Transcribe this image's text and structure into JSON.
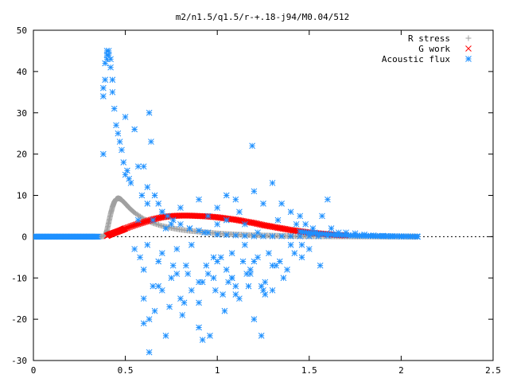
{
  "chart_data": {
    "type": "scatter",
    "title": "m2/n1.5/q1.5/r-+.18-j94/M0.04/512",
    "xlabel": "",
    "ylabel": "",
    "xlim": [
      0,
      2.5
    ],
    "ylim": [
      -30,
      50
    ],
    "xticks": [
      "0",
      "0.5",
      "1",
      "1.5",
      "2",
      "2.5"
    ],
    "yticks": [
      "50",
      "40",
      "30",
      "20",
      "10",
      "0",
      "-10",
      "-20",
      "-30"
    ],
    "grid": false,
    "legend_position": "top-right",
    "series": [
      {
        "name": "R stress",
        "marker": "plus",
        "color": "#a0a0a0",
        "x": [
          0.0,
          0.05,
          0.1,
          0.15,
          0.2,
          0.25,
          0.3,
          0.35,
          0.39,
          0.4,
          0.41,
          0.42,
          0.43,
          0.44,
          0.45,
          0.46,
          0.47,
          0.48,
          0.5,
          0.52,
          0.55,
          0.6,
          0.65,
          0.7,
          0.75,
          0.8,
          0.85,
          0.9,
          0.95,
          1.0,
          1.05,
          1.1,
          1.15,
          1.2,
          1.25,
          1.3,
          1.35,
          1.4,
          1.45,
          1.5,
          1.55,
          1.6,
          1.65,
          1.7,
          1.75,
          1.8,
          1.85,
          1.9,
          1.95,
          2.0,
          2.05,
          2.09
        ],
        "y": [
          0,
          0,
          0,
          0,
          0,
          0,
          0,
          0,
          0.1,
          1.5,
          3.5,
          5.5,
          7.2,
          8.4,
          9.1,
          9.3,
          9.2,
          8.9,
          8.0,
          7.0,
          5.8,
          4.3,
          3.3,
          2.6,
          2.1,
          1.7,
          1.4,
          1.2,
          1.0,
          0.8,
          0.65,
          0.55,
          0.45,
          0.35,
          0.3,
          0.25,
          0.2,
          0.15,
          0.12,
          0.1,
          0.08,
          0.06,
          0.05,
          0.04,
          0.03,
          0.02,
          0.02,
          0.01,
          0.01,
          0.01,
          0,
          0
        ]
      },
      {
        "name": "G work",
        "marker": "cross",
        "color": "#ff0000",
        "x": [
          0.4,
          0.42,
          0.45,
          0.48,
          0.5,
          0.55,
          0.6,
          0.65,
          0.7,
          0.75,
          0.8,
          0.85,
          0.9,
          0.95,
          1.0,
          1.05,
          1.1,
          1.15,
          1.2,
          1.25,
          1.3,
          1.35,
          1.4,
          1.45,
          1.5,
          1.55,
          1.6,
          1.65,
          1.7
        ],
        "y": [
          0.2,
          0.6,
          1.1,
          1.6,
          2.0,
          2.8,
          3.5,
          4.2,
          4.7,
          5.0,
          5.1,
          5.1,
          5.0,
          4.9,
          4.7,
          4.4,
          4.1,
          3.7,
          3.3,
          2.8,
          2.4,
          2.0,
          1.6,
          1.3,
          1.0,
          0.8,
          0.6,
          0.4,
          0.3
        ]
      },
      {
        "name": "Acoustic flux",
        "marker": "star",
        "color": "#1e90ff",
        "x": [
          0.0,
          0.05,
          0.1,
          0.15,
          0.2,
          0.25,
          0.3,
          0.35,
          0.38,
          0.38,
          0.38,
          0.39,
          0.39,
          0.4,
          0.4,
          0.4,
          0.41,
          0.41,
          0.42,
          0.42,
          0.43,
          0.43,
          0.44,
          0.45,
          0.46,
          0.47,
          0.48,
          0.49,
          0.5,
          0.5,
          0.51,
          0.52,
          0.53,
          0.55,
          0.57,
          0.59,
          0.6,
          0.62,
          0.63,
          0.64,
          0.66,
          0.68,
          0.7,
          0.73,
          0.76,
          0.8,
          0.85,
          0.9,
          0.95,
          1.0,
          1.05,
          1.1,
          1.15,
          1.2,
          1.25,
          1.3,
          1.35,
          1.4,
          1.45,
          1.5,
          1.55,
          1.6,
          1.65,
          1.7,
          1.75,
          1.8,
          1.85,
          1.9,
          1.95,
          2.0,
          2.05,
          2.09,
          0.55,
          0.58,
          0.6,
          0.62,
          0.65,
          0.68,
          0.7,
          0.72,
          0.75,
          0.78,
          0.8,
          0.83,
          0.86,
          0.9,
          0.93,
          0.95,
          0.98,
          1.0,
          1.03,
          1.05,
          1.08,
          1.1,
          1.12,
          1.15,
          1.18,
          1.2,
          1.22,
          1.25,
          1.28,
          1.3,
          1.33,
          1.36,
          1.4,
          1.43,
          1.46,
          1.5,
          1.53,
          1.56,
          1.6,
          0.57,
          0.6,
          0.63,
          0.66,
          0.7,
          0.74,
          0.78,
          0.82,
          0.86,
          0.9,
          0.94,
          0.98,
          1.02,
          1.06,
          1.1,
          1.14,
          1.18,
          1.22,
          1.26,
          1.3,
          1.34,
          1.38,
          1.42,
          1.46,
          0.62,
          0.65,
          0.7,
          0.75,
          0.8,
          0.85,
          0.9,
          0.95,
          1.0,
          1.05,
          1.1,
          1.15,
          1.2,
          1.25,
          0.6,
          0.68,
          0.76,
          0.84,
          0.92,
          1.0,
          1.08,
          1.16,
          1.24,
          1.32,
          0.63,
          0.72,
          0.81,
          0.9,
          0.99,
          1.08,
          1.17,
          1.26,
          0.92,
          0.96,
          1.04,
          1.12,
          1.2,
          1.24,
          1.19,
          1.05,
          1.3,
          1.35,
          1.4,
          1.45,
          1.48,
          1.52,
          1.57,
          1.62,
          1.66
        ],
        "y": [
          0,
          0,
          0,
          0,
          0,
          0,
          0,
          0,
          20,
          34,
          36,
          38,
          42,
          43,
          44,
          45,
          44,
          45,
          43,
          41,
          38,
          35,
          31,
          27,
          25,
          23,
          21,
          18,
          15,
          29,
          16,
          14,
          13,
          26,
          17,
          10,
          17,
          12,
          30,
          23,
          10,
          8,
          6,
          5,
          4,
          3,
          2,
          1.5,
          1,
          0.5,
          0.4,
          0.3,
          0.2,
          0.1,
          0.1,
          0.1,
          0.1,
          0.1,
          0.1,
          0.1,
          0.1,
          0.2,
          0.5,
          1,
          0.8,
          0.5,
          0.3,
          0.2,
          0.1,
          0.05,
          0.02,
          0,
          -3,
          -5,
          -8,
          -2,
          -12,
          -6,
          -4,
          2,
          -10,
          -3,
          -15,
          -7,
          -2,
          -11,
          1,
          -9,
          -5,
          3,
          -14,
          -8,
          -4,
          -12,
          6,
          -2,
          -9,
          -6,
          1,
          -13,
          -4,
          -7,
          4,
          -10,
          -2,
          3,
          -5,
          -3,
          1,
          -7,
          9,
          4,
          -15,
          -20,
          -18,
          -13,
          -17,
          -9,
          -16,
          -13,
          -22,
          -7,
          -10,
          -5,
          -11,
          -14,
          -6,
          -8,
          -5,
          -11,
          -13,
          -6,
          -8,
          -4,
          -2,
          8,
          4,
          6,
          3,
          7,
          2,
          9,
          5,
          7,
          4,
          9,
          3,
          11,
          8,
          -21,
          -12,
          -7,
          -9,
          -11,
          -6,
          -10,
          -9,
          -12,
          -7,
          -28,
          -24,
          -19,
          -16,
          -13,
          -10,
          -12,
          -14,
          -25,
          -24,
          -18,
          -15,
          -20,
          -24,
          22,
          10,
          13,
          8,
          6,
          5,
          3,
          2,
          5,
          2,
          1
        ]
      }
    ]
  }
}
